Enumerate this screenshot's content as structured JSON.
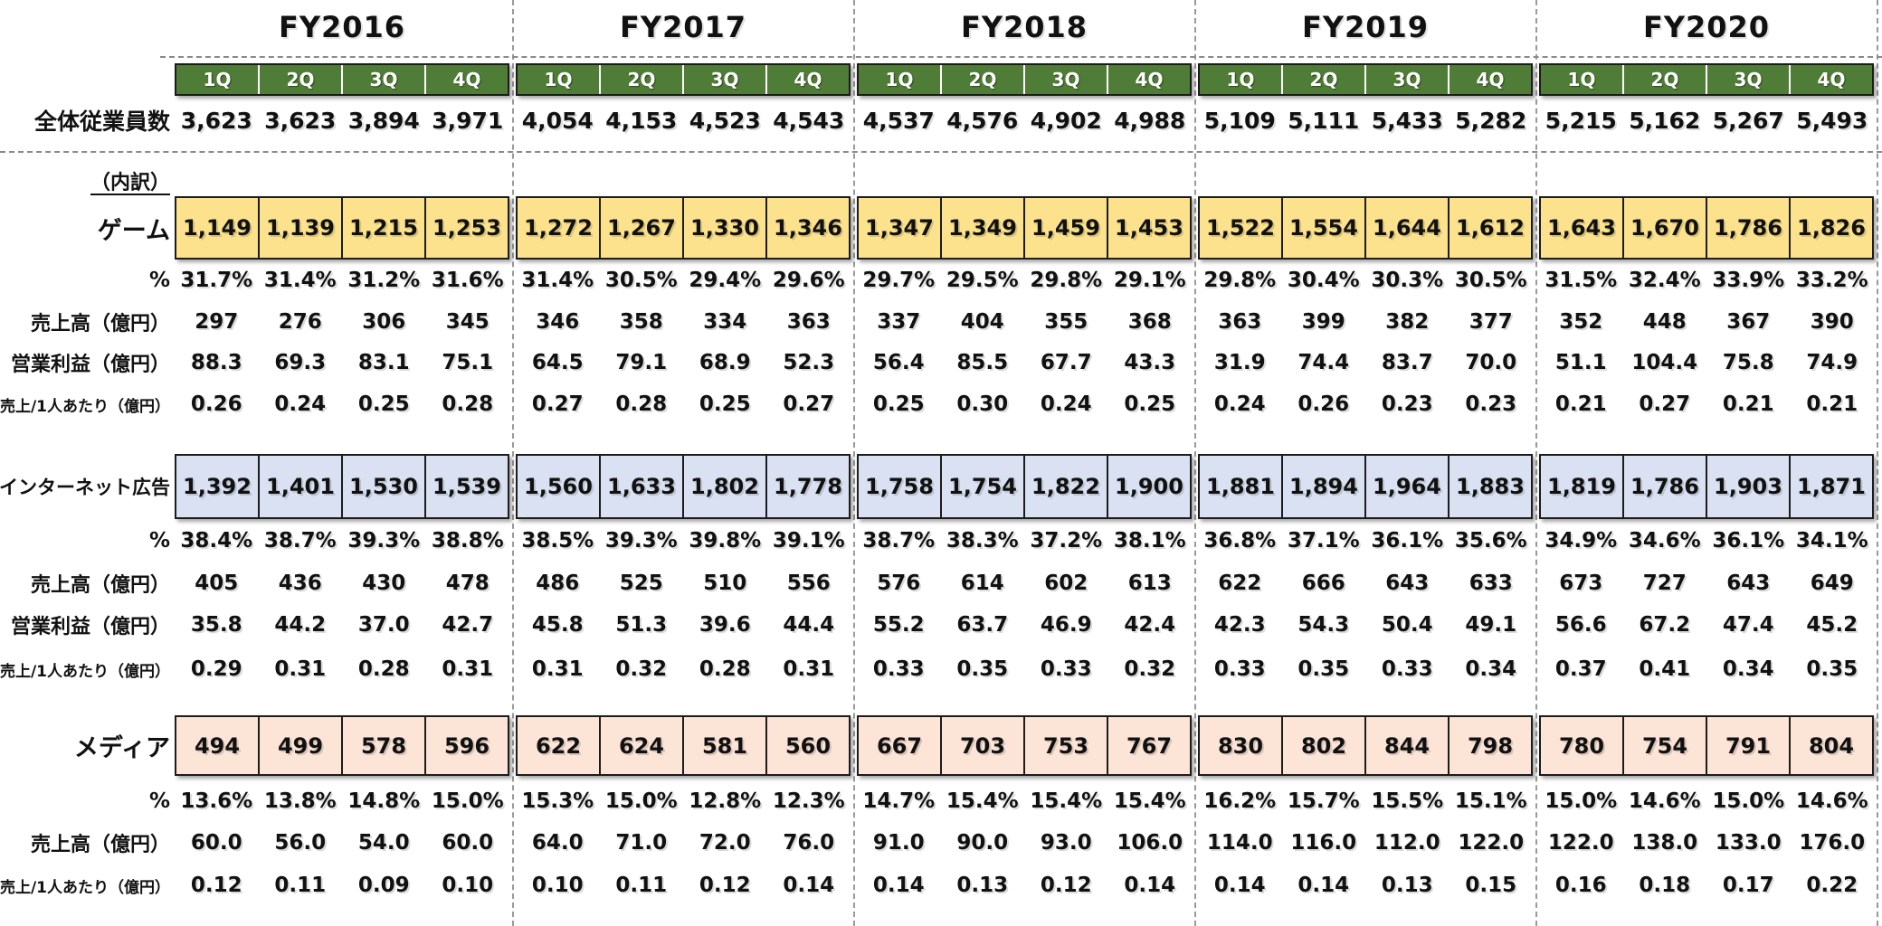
{
  "colors": {
    "quarter_header_bg": "#4f7c36",
    "quarter_header_text": "#ffffff",
    "game_fill": "#fce28c",
    "internet_ad_fill": "#d9e1f2",
    "media_fill": "#fce4d6",
    "box_border": "#1c1c1c"
  },
  "table": {
    "quarters": [
      "1Q",
      "2Q",
      "3Q",
      "4Q"
    ],
    "labels": {
      "total_employees": "全体従業員数",
      "breakdown": "（内訳）",
      "game": "ゲーム",
      "internet_ad": "インターネット広告",
      "media": "メディア",
      "percent": "%",
      "revenue": "売上高（億円）",
      "operating_profit": "営業利益（億円）",
      "revenue_per_person": "売上/1人あたり（億円）"
    },
    "years": [
      {
        "name": "FY2016",
        "employees": [
          "3,623",
          "3,623",
          "3,894",
          "3,971"
        ],
        "game": {
          "headcount": [
            "1,149",
            "1,139",
            "1,215",
            "1,253"
          ],
          "percent": [
            "31.7%",
            "31.4%",
            "31.2%",
            "31.6%"
          ],
          "revenue": [
            "297",
            "276",
            "306",
            "345"
          ],
          "operating_profit": [
            "88.3",
            "69.3",
            "83.1",
            "75.1"
          ],
          "per_person": [
            "0.26",
            "0.24",
            "0.25",
            "0.28"
          ]
        },
        "internet_ad": {
          "headcount": [
            "1,392",
            "1,401",
            "1,530",
            "1,539"
          ],
          "percent": [
            "38.4%",
            "38.7%",
            "39.3%",
            "38.8%"
          ],
          "revenue": [
            "405",
            "436",
            "430",
            "478"
          ],
          "operating_profit": [
            "35.8",
            "44.2",
            "37.0",
            "42.7"
          ],
          "per_person": [
            "0.29",
            "0.31",
            "0.28",
            "0.31"
          ]
        },
        "media": {
          "headcount": [
            "494",
            "499",
            "578",
            "596"
          ],
          "percent": [
            "13.6%",
            "13.8%",
            "14.8%",
            "15.0%"
          ],
          "revenue": [
            "60.0",
            "56.0",
            "54.0",
            "60.0"
          ],
          "per_person": [
            "0.12",
            "0.11",
            "0.09",
            "0.10"
          ]
        }
      },
      {
        "name": "FY2017",
        "employees": [
          "4,054",
          "4,153",
          "4,523",
          "4,543"
        ],
        "game": {
          "headcount": [
            "1,272",
            "1,267",
            "1,330",
            "1,346"
          ],
          "percent": [
            "31.4%",
            "30.5%",
            "29.4%",
            "29.6%"
          ],
          "revenue": [
            "346",
            "358",
            "334",
            "363"
          ],
          "operating_profit": [
            "64.5",
            "79.1",
            "68.9",
            "52.3"
          ],
          "per_person": [
            "0.27",
            "0.28",
            "0.25",
            "0.27"
          ]
        },
        "internet_ad": {
          "headcount": [
            "1,560",
            "1,633",
            "1,802",
            "1,778"
          ],
          "percent": [
            "38.5%",
            "39.3%",
            "39.8%",
            "39.1%"
          ],
          "revenue": [
            "486",
            "525",
            "510",
            "556"
          ],
          "operating_profit": [
            "45.8",
            "51.3",
            "39.6",
            "44.4"
          ],
          "per_person": [
            "0.31",
            "0.32",
            "0.28",
            "0.31"
          ]
        },
        "media": {
          "headcount": [
            "622",
            "624",
            "581",
            "560"
          ],
          "percent": [
            "15.3%",
            "15.0%",
            "12.8%",
            "12.3%"
          ],
          "revenue": [
            "64.0",
            "71.0",
            "72.0",
            "76.0"
          ],
          "per_person": [
            "0.10",
            "0.11",
            "0.12",
            "0.14"
          ]
        }
      },
      {
        "name": "FY2018",
        "employees": [
          "4,537",
          "4,576",
          "4,902",
          "4,988"
        ],
        "game": {
          "headcount": [
            "1,347",
            "1,349",
            "1,459",
            "1,453"
          ],
          "percent": [
            "29.7%",
            "29.5%",
            "29.8%",
            "29.1%"
          ],
          "revenue": [
            "337",
            "404",
            "355",
            "368"
          ],
          "operating_profit": [
            "56.4",
            "85.5",
            "67.7",
            "43.3"
          ],
          "per_person": [
            "0.25",
            "0.30",
            "0.24",
            "0.25"
          ]
        },
        "internet_ad": {
          "headcount": [
            "1,758",
            "1,754",
            "1,822",
            "1,900"
          ],
          "percent": [
            "38.7%",
            "38.3%",
            "37.2%",
            "38.1%"
          ],
          "revenue": [
            "576",
            "614",
            "602",
            "613"
          ],
          "operating_profit": [
            "55.2",
            "63.7",
            "46.9",
            "42.4"
          ],
          "per_person": [
            "0.33",
            "0.35",
            "0.33",
            "0.32"
          ]
        },
        "media": {
          "headcount": [
            "667",
            "703",
            "753",
            "767"
          ],
          "percent": [
            "14.7%",
            "15.4%",
            "15.4%",
            "15.4%"
          ],
          "revenue": [
            "91.0",
            "90.0",
            "93.0",
            "106.0"
          ],
          "per_person": [
            "0.14",
            "0.13",
            "0.12",
            "0.14"
          ]
        }
      },
      {
        "name": "FY2019",
        "employees": [
          "5,109",
          "5,111",
          "5,433",
          "5,282"
        ],
        "game": {
          "headcount": [
            "1,522",
            "1,554",
            "1,644",
            "1,612"
          ],
          "percent": [
            "29.8%",
            "30.4%",
            "30.3%",
            "30.5%"
          ],
          "revenue": [
            "363",
            "399",
            "382",
            "377"
          ],
          "operating_profit": [
            "31.9",
            "74.4",
            "83.7",
            "70.0"
          ],
          "per_person": [
            "0.24",
            "0.26",
            "0.23",
            "0.23"
          ]
        },
        "internet_ad": {
          "headcount": [
            "1,881",
            "1,894",
            "1,964",
            "1,883"
          ],
          "percent": [
            "36.8%",
            "37.1%",
            "36.1%",
            "35.6%"
          ],
          "revenue": [
            "622",
            "666",
            "643",
            "633"
          ],
          "operating_profit": [
            "42.3",
            "54.3",
            "50.4",
            "49.1"
          ],
          "per_person": [
            "0.33",
            "0.35",
            "0.33",
            "0.34"
          ]
        },
        "media": {
          "headcount": [
            "830",
            "802",
            "844",
            "798"
          ],
          "percent": [
            "16.2%",
            "15.7%",
            "15.5%",
            "15.1%"
          ],
          "revenue": [
            "114.0",
            "116.0",
            "112.0",
            "122.0"
          ],
          "per_person": [
            "0.14",
            "0.14",
            "0.13",
            "0.15"
          ]
        }
      },
      {
        "name": "FY2020",
        "employees": [
          "5,215",
          "5,162",
          "5,267",
          "5,493"
        ],
        "game": {
          "headcount": [
            "1,643",
            "1,670",
            "1,786",
            "1,826"
          ],
          "percent": [
            "31.5%",
            "32.4%",
            "33.9%",
            "33.2%"
          ],
          "revenue": [
            "352",
            "448",
            "367",
            "390"
          ],
          "operating_profit": [
            "51.1",
            "104.4",
            "75.8",
            "74.9"
          ],
          "per_person": [
            "0.21",
            "0.27",
            "0.21",
            "0.21"
          ]
        },
        "internet_ad": {
          "headcount": [
            "1,819",
            "1,786",
            "1,903",
            "1,871"
          ],
          "percent": [
            "34.9%",
            "34.6%",
            "36.1%",
            "34.1%"
          ],
          "revenue": [
            "673",
            "727",
            "643",
            "649"
          ],
          "operating_profit": [
            "56.6",
            "67.2",
            "47.4",
            "45.2"
          ],
          "per_person": [
            "0.37",
            "0.41",
            "0.34",
            "0.35"
          ]
        },
        "media": {
          "headcount": [
            "780",
            "754",
            "791",
            "804"
          ],
          "percent": [
            "15.0%",
            "14.6%",
            "15.0%",
            "14.6%"
          ],
          "revenue": [
            "122.0",
            "138.0",
            "133.0",
            "176.0"
          ],
          "per_person": [
            "0.16",
            "0.18",
            "0.17",
            "0.22"
          ]
        }
      }
    ]
  }
}
